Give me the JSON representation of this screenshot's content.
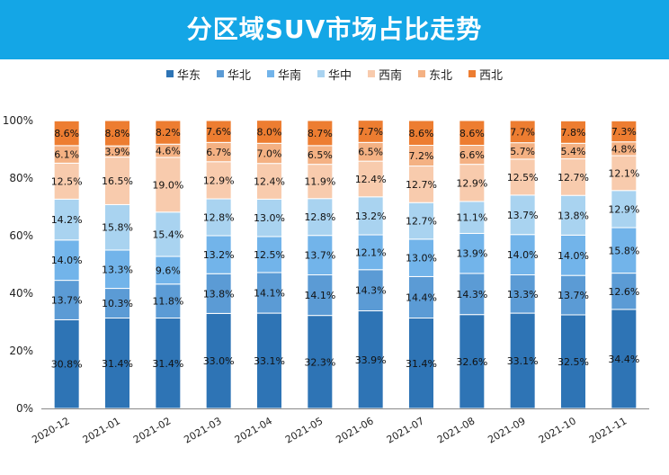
{
  "title": "分区域SUV市场占比走势",
  "chart_data": {
    "type": "bar",
    "stacked": true,
    "title": "分区域SUV市场占比走势",
    "categories": [
      "2020-12",
      "2021-01",
      "2021-02",
      "2021-03",
      "2021-04",
      "2021-05",
      "2021-06",
      "2021-07",
      "2021-08",
      "2021-09",
      "2021-10",
      "2021-11"
    ],
    "ylim": [
      0,
      100
    ],
    "yticks": [
      "0%",
      "20%",
      "40%",
      "60%",
      "80%",
      "100%"
    ],
    "legend_position": "top",
    "series": [
      {
        "name": "华东",
        "color": "#2E74B5",
        "values": [
          30.8,
          31.4,
          31.4,
          33.0,
          33.1,
          32.3,
          33.9,
          31.4,
          32.6,
          33.1,
          32.5,
          34.4
        ]
      },
      {
        "name": "华北",
        "color": "#5B9BD5",
        "values": [
          13.7,
          10.3,
          11.8,
          13.8,
          14.1,
          14.1,
          14.3,
          14.4,
          14.3,
          13.3,
          13.7,
          12.6
        ]
      },
      {
        "name": "华南",
        "color": "#72B4EA",
        "values": [
          14.0,
          13.3,
          9.6,
          13.2,
          12.5,
          13.7,
          12.1,
          13.0,
          13.9,
          14.0,
          14.0,
          15.8
        ]
      },
      {
        "name": "华中",
        "color": "#A9D3F0",
        "values": [
          14.2,
          15.8,
          15.4,
          12.8,
          13.0,
          12.8,
          13.2,
          12.7,
          11.1,
          13.7,
          13.8,
          12.9
        ]
      },
      {
        "name": "西南",
        "color": "#F8CBAD",
        "values": [
          12.5,
          16.5,
          19.0,
          12.9,
          12.4,
          11.9,
          12.4,
          12.7,
          12.9,
          12.5,
          12.7,
          12.1
        ]
      },
      {
        "name": "东北",
        "color": "#F4B183",
        "values": [
          6.1,
          3.9,
          4.6,
          6.7,
          7.0,
          6.5,
          6.5,
          7.2,
          6.6,
          5.7,
          5.4,
          4.8
        ]
      },
      {
        "name": "西北",
        "color": "#ED7D31",
        "values": [
          8.6,
          8.8,
          8.2,
          7.6,
          8.0,
          8.7,
          7.7,
          8.6,
          8.6,
          7.7,
          7.8,
          7.3
        ]
      }
    ]
  }
}
